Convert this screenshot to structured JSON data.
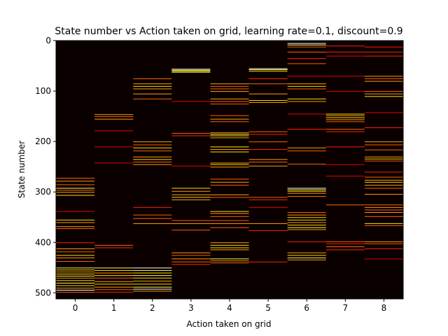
{
  "chart_data": {
    "type": "heatmap",
    "title": "State number vs Action taken on grid, learning rate=0.1, discount=0.9",
    "xlabel": "Action taken on grid",
    "ylabel": "State number",
    "x_categories": [
      "0",
      "1",
      "2",
      "3",
      "4",
      "5",
      "6",
      "7",
      "8"
    ],
    "y_range": [
      0,
      512
    ],
    "y_ticks": [
      "0",
      "100",
      "200",
      "300",
      "400",
      "500"
    ],
    "y_tick_values": [
      0,
      100,
      200,
      300,
      400,
      500
    ],
    "y_inverted": true,
    "colormap": "hot",
    "background_color": "#0b0000",
    "colors": {
      "low": "#7a0000",
      "mid": "#ff2200",
      "high": "#ffd23a"
    },
    "grid": false,
    "stripes": [
      [
        [
          272,
          0.6
        ],
        [
          278,
          0.7
        ],
        [
          285,
          0.6
        ],
        [
          292,
          0.9
        ],
        [
          296,
          0.6
        ],
        [
          300,
          0.7
        ],
        [
          306,
          0.8
        ],
        [
          338,
          0.4
        ],
        [
          355,
          0.8
        ],
        [
          360,
          0.7
        ],
        [
          368,
          0.7
        ],
        [
          372,
          0.6
        ],
        [
          400,
          0.5
        ],
        [
          412,
          0.7
        ],
        [
          418,
          0.6
        ],
        [
          425,
          0.8
        ],
        [
          430,
          0.7
        ],
        [
          437,
          0.6
        ],
        [
          450,
          0.9
        ],
        [
          454,
          0.8
        ],
        [
          458,
          0.7
        ],
        [
          462,
          0.8
        ],
        [
          466,
          0.9
        ],
        [
          470,
          0.7
        ],
        [
          475,
          0.8
        ],
        [
          480,
          0.9
        ],
        [
          485,
          0.8
        ],
        [
          490,
          0.7
        ],
        [
          494,
          1.0
        ],
        [
          498,
          0.6
        ]
      ],
      [
        [
          146,
          0.7
        ],
        [
          150,
          0.6
        ],
        [
          155,
          0.7
        ],
        [
          178,
          0.4
        ],
        [
          210,
          0.4
        ],
        [
          242,
          0.4
        ],
        [
          405,
          0.6
        ],
        [
          410,
          0.5
        ],
        [
          450,
          0.9
        ],
        [
          455,
          0.8
        ],
        [
          460,
          0.7
        ],
        [
          465,
          0.8
        ],
        [
          470,
          0.6
        ],
        [
          477,
          0.7
        ],
        [
          482,
          0.8
        ],
        [
          488,
          0.7
        ],
        [
          493,
          0.6
        ],
        [
          498,
          0.5
        ]
      ],
      [
        [
          75,
          0.6
        ],
        [
          85,
          0.7
        ],
        [
          90,
          0.8
        ],
        [
          95,
          0.7
        ],
        [
          105,
          0.7
        ],
        [
          115,
          0.6
        ],
        [
          200,
          0.7
        ],
        [
          206,
          0.6
        ],
        [
          212,
          0.8
        ],
        [
          218,
          0.6
        ],
        [
          230,
          0.7
        ],
        [
          235,
          0.8
        ],
        [
          240,
          0.6
        ],
        [
          245,
          0.7
        ],
        [
          330,
          0.5
        ],
        [
          345,
          0.6
        ],
        [
          352,
          0.6
        ],
        [
          362,
          0.7
        ],
        [
          450,
          1.0
        ],
        [
          455,
          0.9
        ],
        [
          460,
          0.8
        ],
        [
          465,
          0.9
        ],
        [
          470,
          0.8
        ],
        [
          476,
          0.7
        ],
        [
          482,
          0.8
        ],
        [
          488,
          0.9
        ],
        [
          492,
          1.0
        ],
        [
          496,
          0.7
        ]
      ],
      [
        [
          56,
          1.0
        ],
        [
          58,
          0.9
        ],
        [
          60,
          0.8
        ],
        [
          62,
          0.9
        ],
        [
          120,
          0.4
        ],
        [
          183,
          0.6
        ],
        [
          188,
          0.5
        ],
        [
          248,
          0.4
        ],
        [
          292,
          0.8
        ],
        [
          298,
          0.7
        ],
        [
          305,
          0.7
        ],
        [
          310,
          0.8
        ],
        [
          315,
          0.7
        ],
        [
          356,
          0.6
        ],
        [
          362,
          0.7
        ],
        [
          375,
          0.6
        ],
        [
          420,
          0.7
        ],
        [
          425,
          0.6
        ],
        [
          432,
          0.7
        ],
        [
          438,
          0.6
        ],
        [
          443,
          0.5
        ]
      ],
      [
        [
          85,
          0.7
        ],
        [
          90,
          0.6
        ],
        [
          95,
          0.6
        ],
        [
          100,
          0.7
        ],
        [
          115,
          0.7
        ],
        [
          120,
          0.6
        ],
        [
          125,
          0.6
        ],
        [
          148,
          0.6
        ],
        [
          155,
          0.7
        ],
        [
          160,
          0.6
        ],
        [
          182,
          0.7
        ],
        [
          185,
          0.9
        ],
        [
          188,
          0.8
        ],
        [
          192,
          0.7
        ],
        [
          210,
          0.8
        ],
        [
          215,
          0.7
        ],
        [
          220,
          0.8
        ],
        [
          242,
          0.7
        ],
        [
          245,
          0.8
        ],
        [
          250,
          0.7
        ],
        [
          274,
          0.6
        ],
        [
          280,
          0.7
        ],
        [
          286,
          0.6
        ],
        [
          305,
          0.7
        ],
        [
          310,
          0.6
        ],
        [
          338,
          0.8
        ],
        [
          342,
          0.7
        ],
        [
          348,
          0.6
        ],
        [
          356,
          0.6
        ],
        [
          362,
          0.7
        ],
        [
          370,
          0.6
        ],
        [
          400,
          0.7
        ],
        [
          405,
          0.8
        ],
        [
          410,
          0.8
        ],
        [
          414,
          0.7
        ],
        [
          432,
          0.9
        ],
        [
          436,
          0.7
        ],
        [
          440,
          0.6
        ]
      ],
      [
        [
          55,
          1.0
        ],
        [
          57,
          0.9
        ],
        [
          60,
          0.8
        ],
        [
          75,
          0.5
        ],
        [
          85,
          0.6
        ],
        [
          105,
          0.7
        ],
        [
          118,
          0.8
        ],
        [
          122,
          0.7
        ],
        [
          180,
          0.6
        ],
        [
          185,
          0.5
        ],
        [
          200,
          0.6
        ],
        [
          215,
          0.5
        ],
        [
          235,
          0.7
        ],
        [
          240,
          0.6
        ],
        [
          248,
          0.7
        ],
        [
          310,
          0.6
        ],
        [
          315,
          0.5
        ],
        [
          330,
          0.4
        ],
        [
          362,
          0.7
        ],
        [
          376,
          0.5
        ],
        [
          438,
          0.5
        ]
      ],
      [
        [
          5,
          1.0
        ],
        [
          8,
          0.9
        ],
        [
          12,
          0.6
        ],
        [
          22,
          0.6
        ],
        [
          35,
          0.5
        ],
        [
          45,
          0.6
        ],
        [
          70,
          0.4
        ],
        [
          85,
          0.7
        ],
        [
          90,
          0.8
        ],
        [
          95,
          0.6
        ],
        [
          115,
          0.8
        ],
        [
          120,
          0.7
        ],
        [
          145,
          0.4
        ],
        [
          175,
          0.5
        ],
        [
          212,
          0.7
        ],
        [
          218,
          0.6
        ],
        [
          244,
          0.6
        ],
        [
          292,
          1.0
        ],
        [
          295,
          0.9
        ],
        [
          298,
          0.8
        ],
        [
          302,
          0.7
        ],
        [
          308,
          0.6
        ],
        [
          340,
          0.6
        ],
        [
          345,
          0.7
        ],
        [
          350,
          0.8
        ],
        [
          355,
          0.8
        ],
        [
          360,
          0.7
        ],
        [
          365,
          0.8
        ],
        [
          370,
          0.9
        ],
        [
          374,
          0.7
        ],
        [
          398,
          0.5
        ],
        [
          420,
          0.7
        ],
        [
          425,
          0.8
        ],
        [
          430,
          0.9
        ],
        [
          434,
          0.7
        ]
      ],
      [
        [
          10,
          0.5
        ],
        [
          22,
          0.5
        ],
        [
          30,
          0.4
        ],
        [
          70,
          0.4
        ],
        [
          100,
          0.4
        ],
        [
          145,
          0.8
        ],
        [
          148,
          0.7
        ],
        [
          152,
          0.8
        ],
        [
          156,
          0.7
        ],
        [
          160,
          0.6
        ],
        [
          175,
          0.6
        ],
        [
          180,
          0.5
        ],
        [
          210,
          0.5
        ],
        [
          245,
          0.4
        ],
        [
          268,
          0.4
        ],
        [
          325,
          0.6
        ],
        [
          398,
          0.6
        ],
        [
          402,
          0.5
        ],
        [
          408,
          0.6
        ],
        [
          414,
          0.5
        ]
      ],
      [
        [
          12,
          0.5
        ],
        [
          22,
          0.5
        ],
        [
          30,
          0.5
        ],
        [
          70,
          0.7
        ],
        [
          75,
          0.6
        ],
        [
          80,
          0.7
        ],
        [
          100,
          0.6
        ],
        [
          105,
          0.7
        ],
        [
          110,
          0.8
        ],
        [
          142,
          0.4
        ],
        [
          172,
          0.5
        ],
        [
          200,
          0.7
        ],
        [
          206,
          0.6
        ],
        [
          216,
          0.6
        ],
        [
          230,
          0.7
        ],
        [
          234,
          0.8
        ],
        [
          238,
          0.6
        ],
        [
          260,
          0.5
        ],
        [
          270,
          0.6
        ],
        [
          276,
          0.7
        ],
        [
          280,
          0.8
        ],
        [
          286,
          0.7
        ],
        [
          292,
          0.6
        ],
        [
          304,
          0.7
        ],
        [
          325,
          0.6
        ],
        [
          330,
          0.7
        ],
        [
          335,
          0.6
        ],
        [
          340,
          0.7
        ],
        [
          348,
          0.6
        ],
        [
          362,
          0.8
        ],
        [
          366,
          0.6
        ],
        [
          398,
          0.7
        ],
        [
          402,
          0.6
        ],
        [
          412,
          0.5
        ],
        [
          432,
          0.4
        ]
      ]
    ]
  }
}
